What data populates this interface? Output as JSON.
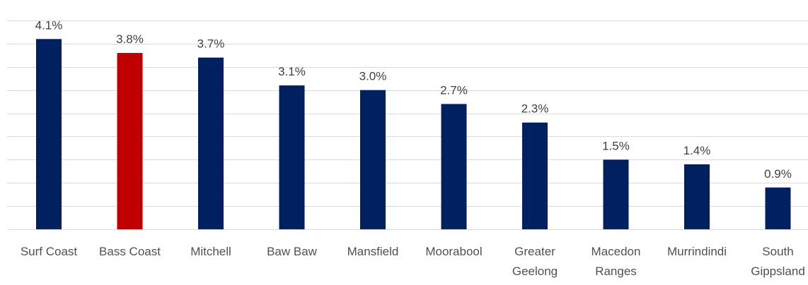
{
  "chart_data": {
    "type": "bar",
    "title": "",
    "xlabel": "",
    "ylabel": "",
    "categories": [
      [
        "Surf Coast"
      ],
      [
        "Bass Coast"
      ],
      [
        "Mitchell"
      ],
      [
        "Baw Baw"
      ],
      [
        "Mansfield"
      ],
      [
        "Moorabool"
      ],
      [
        "Greater",
        "Geelong"
      ],
      [
        "Macedon",
        "Ranges"
      ],
      [
        "Murrindindi"
      ],
      [
        "South",
        "Gippsland"
      ]
    ],
    "values": [
      4.1,
      3.8,
      3.7,
      3.1,
      3.0,
      2.7,
      2.3,
      1.5,
      1.4,
      0.9
    ],
    "data_labels": [
      "4.1%",
      "3.8%",
      "3.7%",
      "3.1%",
      "3.0%",
      "2.7%",
      "2.3%",
      "1.5%",
      "1.4%",
      "0.9%"
    ],
    "ylim": [
      0,
      4.5
    ],
    "grid": true,
    "legend": "none",
    "colors": {
      "default_bar": "#012060",
      "highlight_bar": "#c00000",
      "gridline": "#d9d9d9",
      "text": "#404040"
    },
    "highlight_category": "Bass Coast"
  }
}
